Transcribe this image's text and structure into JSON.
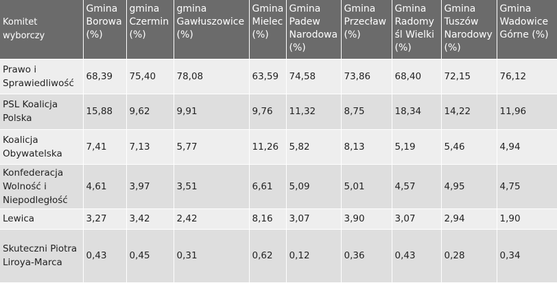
{
  "table": {
    "headers": [
      "Komitet wyborczy",
      "Gmina Borowa (%)",
      "gmina Czermin (%)",
      "gmina Gawłuszowice (%)",
      "Gmina Mielec (%)",
      "Gmina Padew Narodowa (%)",
      "Gmina Przecław (%)",
      "Gmina Radomyśl Wielki (%)",
      "Gmina Tuszów Narodowy (%)",
      "Gmina Wadowice Górne (%)"
    ],
    "rows": [
      [
        "Prawo i Sprawiedliwość",
        "68,39",
        "75,40",
        "78,08",
        "63,59",
        "74,58",
        "73,86",
        "68,40",
        "72,15",
        "76,12"
      ],
      [
        "PSL Koalicja Polska",
        "15,88",
        "9,62",
        "9,91",
        "9,76",
        "11,32",
        "8,75",
        "18,34",
        "14,22",
        "11,96"
      ],
      [
        "Koalicja Obywatelska",
        "7,41",
        "7,13",
        "5,77",
        "11,26",
        "5,82",
        "8,13",
        "5,19",
        "5,46",
        "4,94"
      ],
      [
        "Konfederacja Wolność i Niepodległość",
        "4,61",
        "3,97",
        "3,51",
        "6,61",
        "5,09",
        "5,01",
        "4,57",
        "4,95",
        "4,75"
      ],
      [
        "Lewica",
        "3,27",
        "3,42",
        "2,42",
        "8,16",
        "3,07",
        "3,90",
        "3,07",
        "2,94",
        "1,90"
      ],
      [
        "Skuteczni Piotra Liroya-Marca",
        "0,43",
        "0,45",
        "0,31",
        "0,62",
        "0,12",
        "0,36",
        "0,43",
        "0,28",
        "0,34"
      ]
    ]
  }
}
